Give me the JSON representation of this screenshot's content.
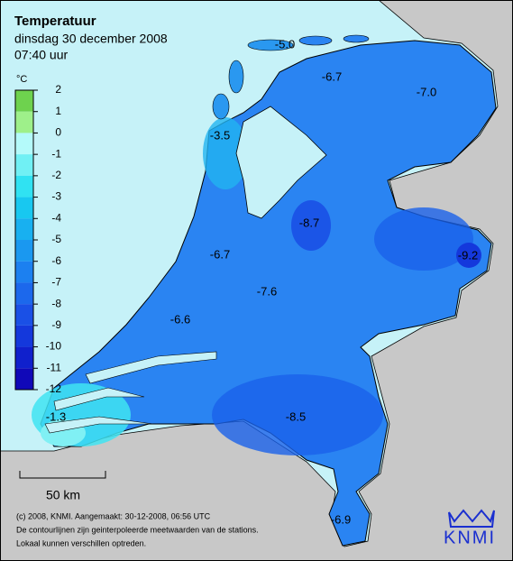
{
  "title": "Temperatuur",
  "date": "dinsdag 30 december 2008",
  "time": "07:40 uur",
  "legend": {
    "unit": "°C",
    "ticks": [
      2,
      1,
      0,
      -1,
      -2,
      -3,
      -4,
      -5,
      -6,
      -7,
      -8,
      -9,
      -10,
      -11,
      -12
    ],
    "colors": [
      "#6ed24e",
      "#9ef08a",
      "#b4fafa",
      "#70f0f4",
      "#30e2f2",
      "#18c8f0",
      "#18b0f0",
      "#1a98f0",
      "#1c80f0",
      "#1c68ec",
      "#1a50e6",
      "#1438dc",
      "#1020cc",
      "#1008b8"
    ]
  },
  "stations": [
    "-5.0",
    "-6.7",
    "-7.0",
    "-3.5",
    "-8.7",
    "-9.2",
    "-6.7",
    "-7.6",
    "-6.6",
    "-8.5",
    "-1.3",
    "-6.9"
  ],
  "scale_bar": "50 km",
  "footer": [
    "(c) 2008, KNMI. Aangemaakt: 30-12-2008, 06:56 UTC",
    "De contourlijnen zijn geinterpoleerde meetwaarden van de stations.",
    "Lokaal kunnen verschillen optreden."
  ],
  "logo": "KNMI"
}
